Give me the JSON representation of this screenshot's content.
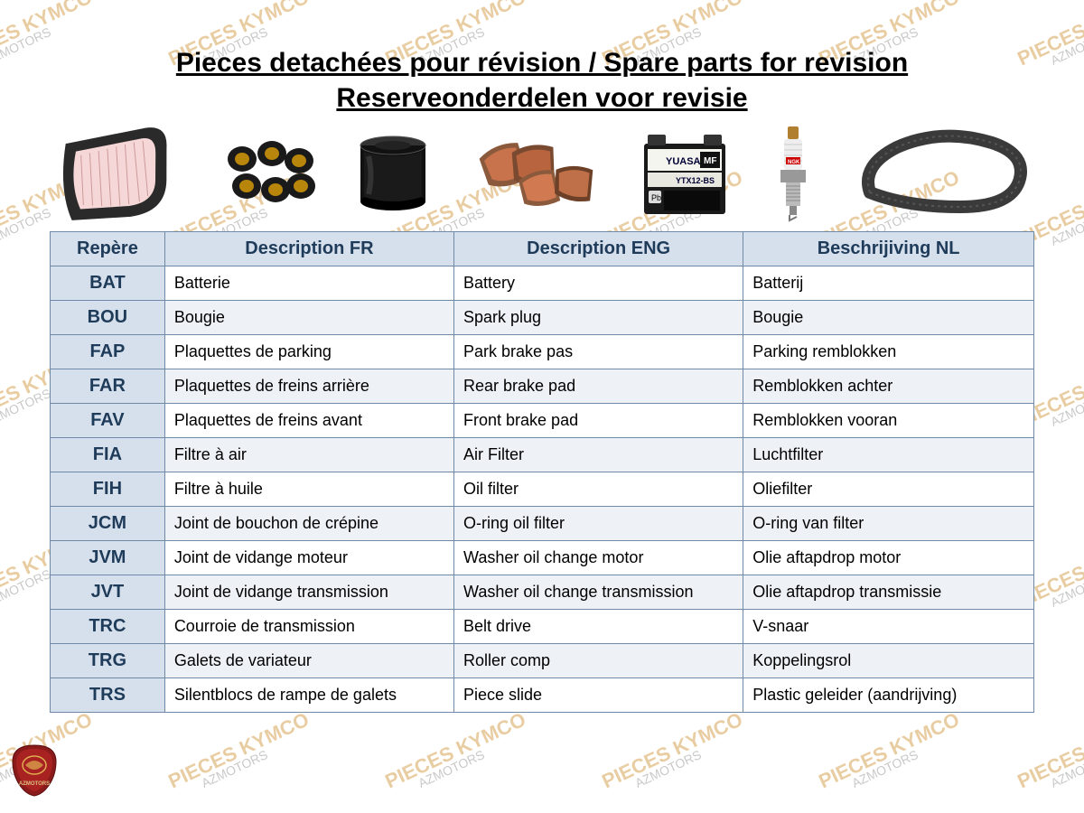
{
  "title_line1": "Pieces detachées pour révision / Spare parts for revision",
  "title_line2": "Reserveonderdelen voor revisie",
  "watermark_top": "PIECES KYMCO",
  "watermark_bottom": "AZMOTORS",
  "watermark_colors": {
    "top": "#d8a657",
    "bottom": "#888888"
  },
  "table": {
    "border_color": "#6f8aa6",
    "header_bg": "#d6e0ec",
    "header_fg": "#1f3b5a",
    "headers": {
      "repere": "Repère",
      "fr": "Description FR",
      "en": "Description ENG",
      "nl": "Beschrijiving NL"
    },
    "rows": [
      {
        "repere": "BAT",
        "fr": "Batterie",
        "en": "Battery",
        "nl": "Batterij"
      },
      {
        "repere": "BOU",
        "fr": "Bougie",
        "en": "Spark plug",
        "nl": "Bougie"
      },
      {
        "repere": "FAP",
        "fr": "Plaquettes de parking",
        "en": "Park brake pas",
        "nl": "Parking remblokken"
      },
      {
        "repere": "FAR",
        "fr": "Plaquettes de freins arrière",
        "en": "Rear brake pad",
        "nl": "Remblokken achter"
      },
      {
        "repere": "FAV",
        "fr": "Plaquettes de freins avant",
        "en": "Front brake pad",
        "nl": "Remblokken vooran"
      },
      {
        "repere": "FIA",
        "fr": "Filtre à air",
        "en": "Air Filter",
        "nl": "Luchtfilter"
      },
      {
        "repere": "FIH",
        "fr": "Filtre à huile",
        "en": "Oil filter",
        "nl": "Oliefilter"
      },
      {
        "repere": "JCM",
        "fr": "Joint de bouchon de crépine",
        "en": "O-ring oil filter",
        "nl": "O-ring van filter"
      },
      {
        "repere": "JVM",
        "fr": "Joint de vidange moteur",
        "en": "Washer oil change motor",
        "nl": "Olie aftapdrop motor"
      },
      {
        "repere": "JVT",
        "fr": "Joint de vidange transmission",
        "en": "Washer oil change transmission",
        "nl": "Olie aftapdrop transmissie"
      },
      {
        "repere": "TRC",
        "fr": "Courroie de transmission",
        "en": "Belt drive",
        "nl": "V-snaar"
      },
      {
        "repere": "TRG",
        "fr": "Galets de variateur",
        "en": "Roller comp",
        "nl": "Koppelingsrol"
      },
      {
        "repere": "TRS",
        "fr": "Silentblocs de rampe de galets",
        "en": "Piece slide",
        "nl": "Plastic geleider (aandrijving)"
      }
    ]
  },
  "part_images": [
    {
      "name": "air-filter",
      "label": "Air filter"
    },
    {
      "name": "rollers",
      "label": "Variator rollers"
    },
    {
      "name": "oil-filter",
      "label": "Oil filter"
    },
    {
      "name": "brake-pads",
      "label": "Brake pads"
    },
    {
      "name": "battery",
      "label": "Battery YUASA YTX12-BS"
    },
    {
      "name": "spark-plug",
      "label": "Spark plug NGK"
    },
    {
      "name": "belt",
      "label": "Drive belt"
    }
  ],
  "battery_text": {
    "brand": "YUASA",
    "type": "MF",
    "model": "YTX12-BS",
    "pb": "Pb"
  },
  "spark_plug_brand": "NGK",
  "logo_text": "AZMOTORS"
}
